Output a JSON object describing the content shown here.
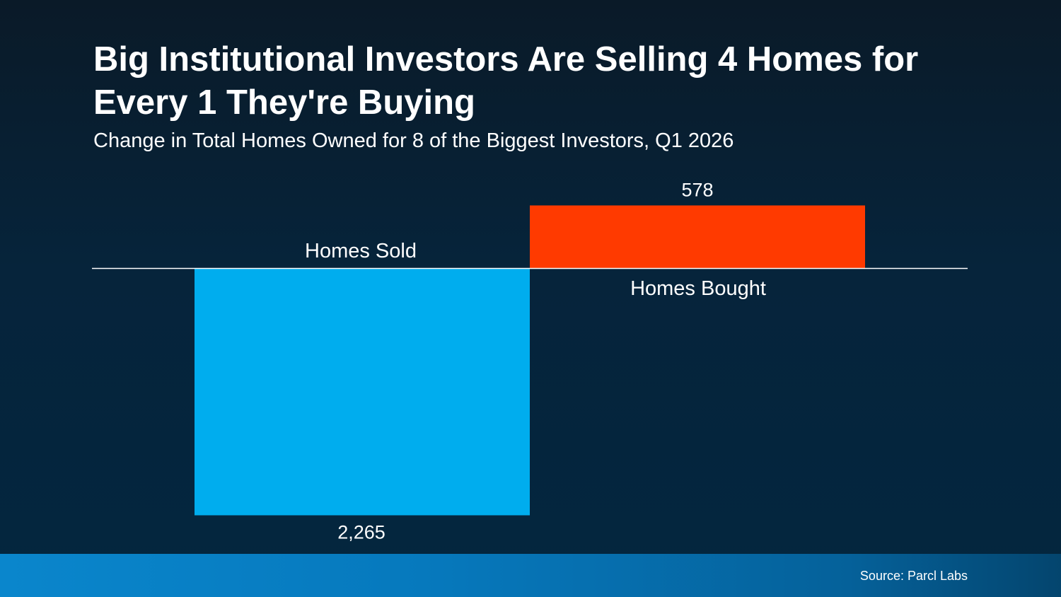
{
  "chart_data": {
    "type": "bar",
    "title": "Big Institutional Investors Are Selling 4 Homes for Every 1 They're Buying",
    "subtitle": "Change in Total Homes Owned for 8 of the Biggest Investors, Q1 2026",
    "categories": [
      "Homes Sold",
      "Homes Bought"
    ],
    "values": [
      -2265,
      578
    ],
    "data_labels": [
      "2,265",
      "578"
    ],
    "colors": [
      "#00adee",
      "#ff3a00"
    ],
    "xlabel": "",
    "ylabel": "",
    "grid": false,
    "legend": "none"
  },
  "source": "Source: Parcl Labs"
}
